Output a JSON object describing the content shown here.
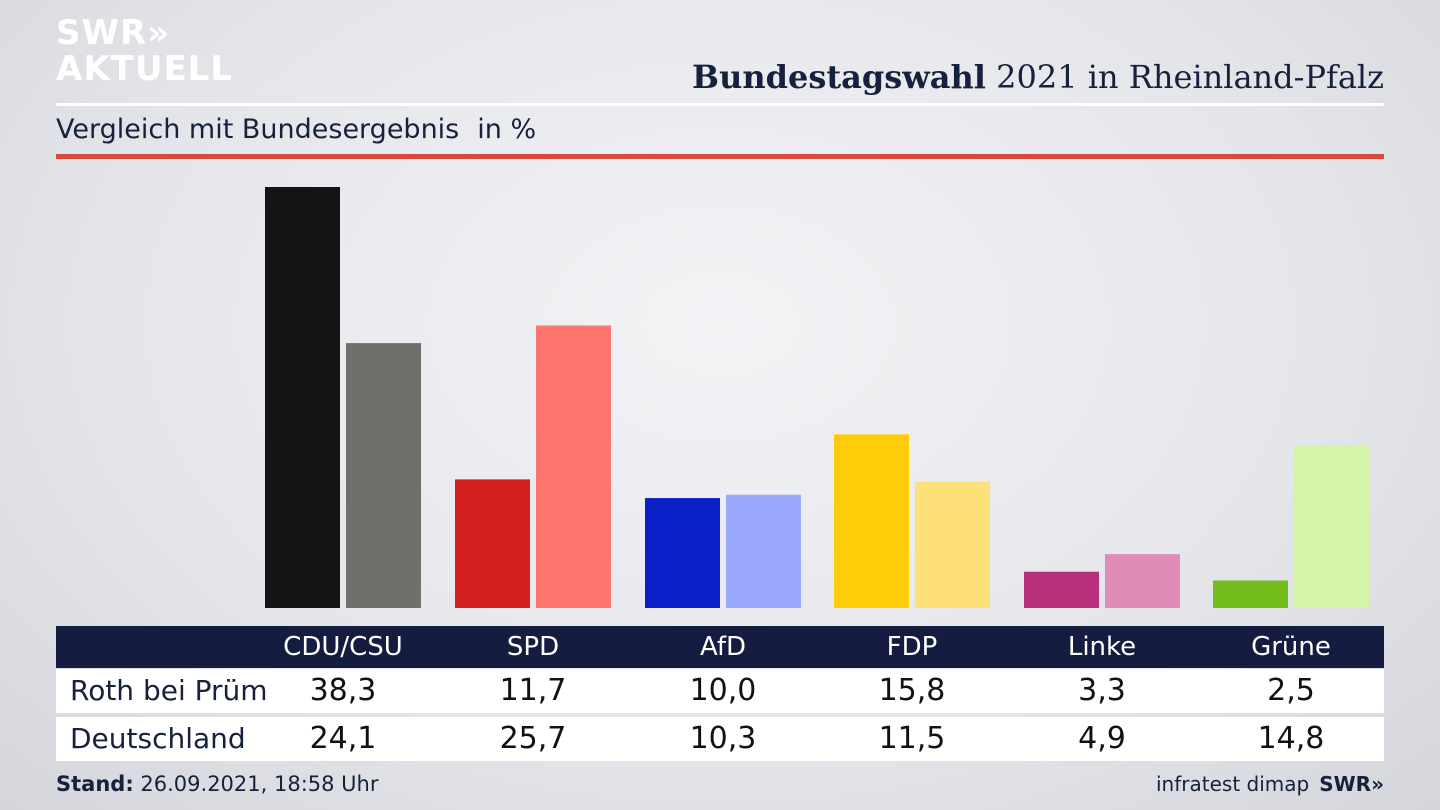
{
  "logo": {
    "line1": "SWR»",
    "line2": "AKTUELL"
  },
  "header": {
    "title_bold": "Bundestagswahl",
    "title_rest": " 2021 in Rheinland-Pfalz"
  },
  "subheader": {
    "text": "Vergleich mit Bundesergebnis",
    "unit": "in %"
  },
  "footer": {
    "stand_label": "Stand:",
    "stand_value": " 26.09.2021, 18:58 Uhr",
    "source": "infratest dimap",
    "brand": "SWR»"
  },
  "chart_data": {
    "type": "bar",
    "title": "Bundestagswahl 2021 in Rheinland-Pfalz",
    "subtitle": "Vergleich mit Bundesergebnis in %",
    "categories": [
      "CDU/CSU",
      "SPD",
      "AfD",
      "FDP",
      "Linke",
      "Grüne"
    ],
    "series": [
      {
        "name": "Roth bei Prüm",
        "values": [
          38.3,
          11.7,
          10.0,
          15.8,
          3.3,
          2.5
        ],
        "display": [
          "38,3",
          "11,7",
          "10,0",
          "15,8",
          "3,3",
          "2,5"
        ],
        "colors": [
          "#141414",
          "#d42020",
          "#0a1fc8",
          "#ffcc0a",
          "#b8307a",
          "#74bd1c"
        ]
      },
      {
        "name": "Deutschland",
        "values": [
          24.1,
          25.7,
          10.3,
          11.5,
          4.9,
          14.8
        ],
        "display": [
          "24,1",
          "25,7",
          "10,3",
          "11,5",
          "4,9",
          "14,8"
        ],
        "colors": [
          "#706f6c",
          "#ff7670",
          "#98a9ff",
          "#fde07a",
          "#e08ab7",
          "#d4f5a9"
        ]
      }
    ],
    "ylim": [
      0,
      38.3
    ]
  }
}
